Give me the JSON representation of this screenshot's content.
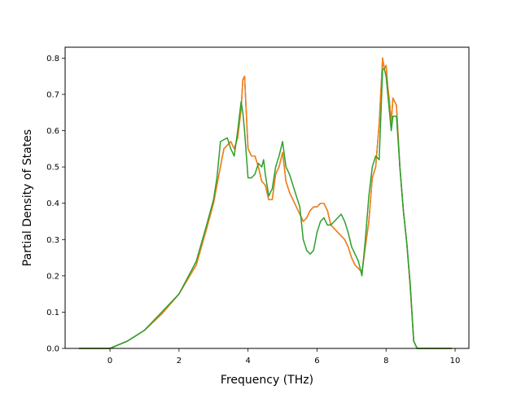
{
  "chart_data": {
    "type": "line",
    "title": "",
    "xlabel": "Frequency (THz)",
    "ylabel": "Partial Density of States",
    "xlim": [
      -1.3,
      10.4
    ],
    "ylim": [
      0.0,
      0.83
    ],
    "xticks": [
      0,
      2,
      4,
      6,
      8,
      10
    ],
    "yticks": [
      0.0,
      0.1,
      0.2,
      0.3,
      0.4,
      0.5,
      0.6,
      0.7,
      0.8
    ],
    "grid": false,
    "legend": "none",
    "series": [
      {
        "color": "#1f77b4",
        "x": [
          -0.9,
          0,
          0.5,
          1,
          1.5,
          2,
          2.5,
          2.8,
          3.0,
          3.1,
          3.3,
          3.5,
          3.6,
          3.7,
          3.8,
          3.85,
          3.9,
          4.0,
          4.1,
          4.2,
          4.3,
          4.4,
          4.5,
          4.6,
          4.7,
          4.8,
          4.9,
          5.0,
          5.1,
          5.2,
          5.3,
          5.4,
          5.5,
          5.6,
          5.7,
          5.8,
          5.9,
          6.0,
          6.1,
          6.2,
          6.3,
          6.4,
          6.5,
          6.6,
          6.7,
          6.8,
          6.9,
          7.0,
          7.1,
          7.2,
          7.3,
          7.4,
          7.5,
          7.6,
          7.7,
          7.8,
          7.9,
          7.95,
          8.0,
          8.05,
          8.1,
          8.15,
          8.2,
          8.3,
          8.4,
          8.5,
          8.6,
          8.7,
          8.8,
          8.9,
          9.0,
          9.5,
          9.9
        ],
        "y": [
          0,
          0,
          0.02,
          0.05,
          0.095,
          0.15,
          0.23,
          0.33,
          0.4,
          0.45,
          0.55,
          0.57,
          0.55,
          0.58,
          0.66,
          0.74,
          0.75,
          0.55,
          0.53,
          0.53,
          0.5,
          0.46,
          0.45,
          0.41,
          0.41,
          0.48,
          0.5,
          0.54,
          0.46,
          0.43,
          0.41,
          0.39,
          0.37,
          0.35,
          0.36,
          0.38,
          0.39,
          0.39,
          0.4,
          0.4,
          0.38,
          0.34,
          0.33,
          0.32,
          0.31,
          0.3,
          0.28,
          0.25,
          0.23,
          0.22,
          0.21,
          0.28,
          0.35,
          0.47,
          0.5,
          0.62,
          0.8,
          0.77,
          0.78,
          0.72,
          0.68,
          0.62,
          0.69,
          0.67,
          0.5,
          0.38,
          0.29,
          0.17,
          0.02,
          0.0,
          0,
          0,
          0
        ]
      },
      {
        "color": "#ff7f0e",
        "x": [
          -0.9,
          0,
          0.5,
          1,
          1.5,
          2,
          2.5,
          2.8,
          3.0,
          3.1,
          3.3,
          3.5,
          3.6,
          3.7,
          3.8,
          3.85,
          3.9,
          4.0,
          4.1,
          4.2,
          4.3,
          4.4,
          4.5,
          4.6,
          4.7,
          4.8,
          4.9,
          5.0,
          5.1,
          5.2,
          5.3,
          5.4,
          5.5,
          5.6,
          5.7,
          5.8,
          5.9,
          6.0,
          6.1,
          6.2,
          6.3,
          6.4,
          6.5,
          6.6,
          6.7,
          6.8,
          6.9,
          7.0,
          7.1,
          7.2,
          7.3,
          7.4,
          7.5,
          7.6,
          7.7,
          7.8,
          7.9,
          7.95,
          8.0,
          8.05,
          8.1,
          8.15,
          8.2,
          8.3,
          8.4,
          8.5,
          8.6,
          8.7,
          8.8,
          8.9,
          9.0,
          9.5,
          9.9
        ],
        "y": [
          0,
          0,
          0.02,
          0.05,
          0.095,
          0.15,
          0.23,
          0.33,
          0.4,
          0.45,
          0.55,
          0.57,
          0.55,
          0.58,
          0.66,
          0.74,
          0.75,
          0.55,
          0.53,
          0.53,
          0.5,
          0.46,
          0.45,
          0.41,
          0.41,
          0.48,
          0.5,
          0.54,
          0.46,
          0.43,
          0.41,
          0.39,
          0.37,
          0.35,
          0.36,
          0.38,
          0.39,
          0.39,
          0.4,
          0.4,
          0.38,
          0.34,
          0.33,
          0.32,
          0.31,
          0.3,
          0.28,
          0.25,
          0.23,
          0.22,
          0.21,
          0.28,
          0.35,
          0.47,
          0.5,
          0.62,
          0.8,
          0.77,
          0.78,
          0.72,
          0.68,
          0.62,
          0.69,
          0.67,
          0.5,
          0.38,
          0.29,
          0.17,
          0.02,
          0.0,
          0,
          0,
          0
        ]
      },
      {
        "color": "#2ca02c",
        "x": [
          -0.9,
          0,
          0.5,
          1,
          1.5,
          2,
          2.5,
          2.8,
          3.0,
          3.1,
          3.2,
          3.4,
          3.5,
          3.6,
          3.7,
          3.8,
          3.85,
          3.9,
          4.0,
          4.1,
          4.2,
          4.3,
          4.4,
          4.45,
          4.5,
          4.6,
          4.7,
          4.8,
          4.9,
          5.0,
          5.1,
          5.2,
          5.3,
          5.4,
          5.5,
          5.6,
          5.7,
          5.8,
          5.9,
          6.0,
          6.1,
          6.2,
          6.3,
          6.4,
          6.5,
          6.6,
          6.7,
          6.8,
          6.9,
          7.0,
          7.1,
          7.2,
          7.3,
          7.4,
          7.5,
          7.6,
          7.7,
          7.8,
          7.9,
          7.95,
          8.0,
          8.05,
          8.1,
          8.15,
          8.2,
          8.3,
          8.4,
          8.5,
          8.6,
          8.7,
          8.8,
          8.9,
          9.0,
          9.5,
          9.9
        ],
        "y": [
          0,
          0,
          0.02,
          0.05,
          0.1,
          0.15,
          0.24,
          0.34,
          0.41,
          0.47,
          0.57,
          0.58,
          0.55,
          0.53,
          0.6,
          0.68,
          0.65,
          0.6,
          0.47,
          0.47,
          0.48,
          0.51,
          0.5,
          0.52,
          0.48,
          0.42,
          0.44,
          0.5,
          0.53,
          0.57,
          0.5,
          0.48,
          0.45,
          0.42,
          0.39,
          0.3,
          0.27,
          0.26,
          0.27,
          0.32,
          0.35,
          0.36,
          0.34,
          0.34,
          0.35,
          0.36,
          0.37,
          0.35,
          0.32,
          0.28,
          0.26,
          0.24,
          0.2,
          0.3,
          0.42,
          0.5,
          0.53,
          0.52,
          0.77,
          0.77,
          0.75,
          0.7,
          0.65,
          0.6,
          0.64,
          0.64,
          0.5,
          0.38,
          0.29,
          0.18,
          0.02,
          0.0,
          0,
          0,
          0
        ]
      }
    ]
  }
}
